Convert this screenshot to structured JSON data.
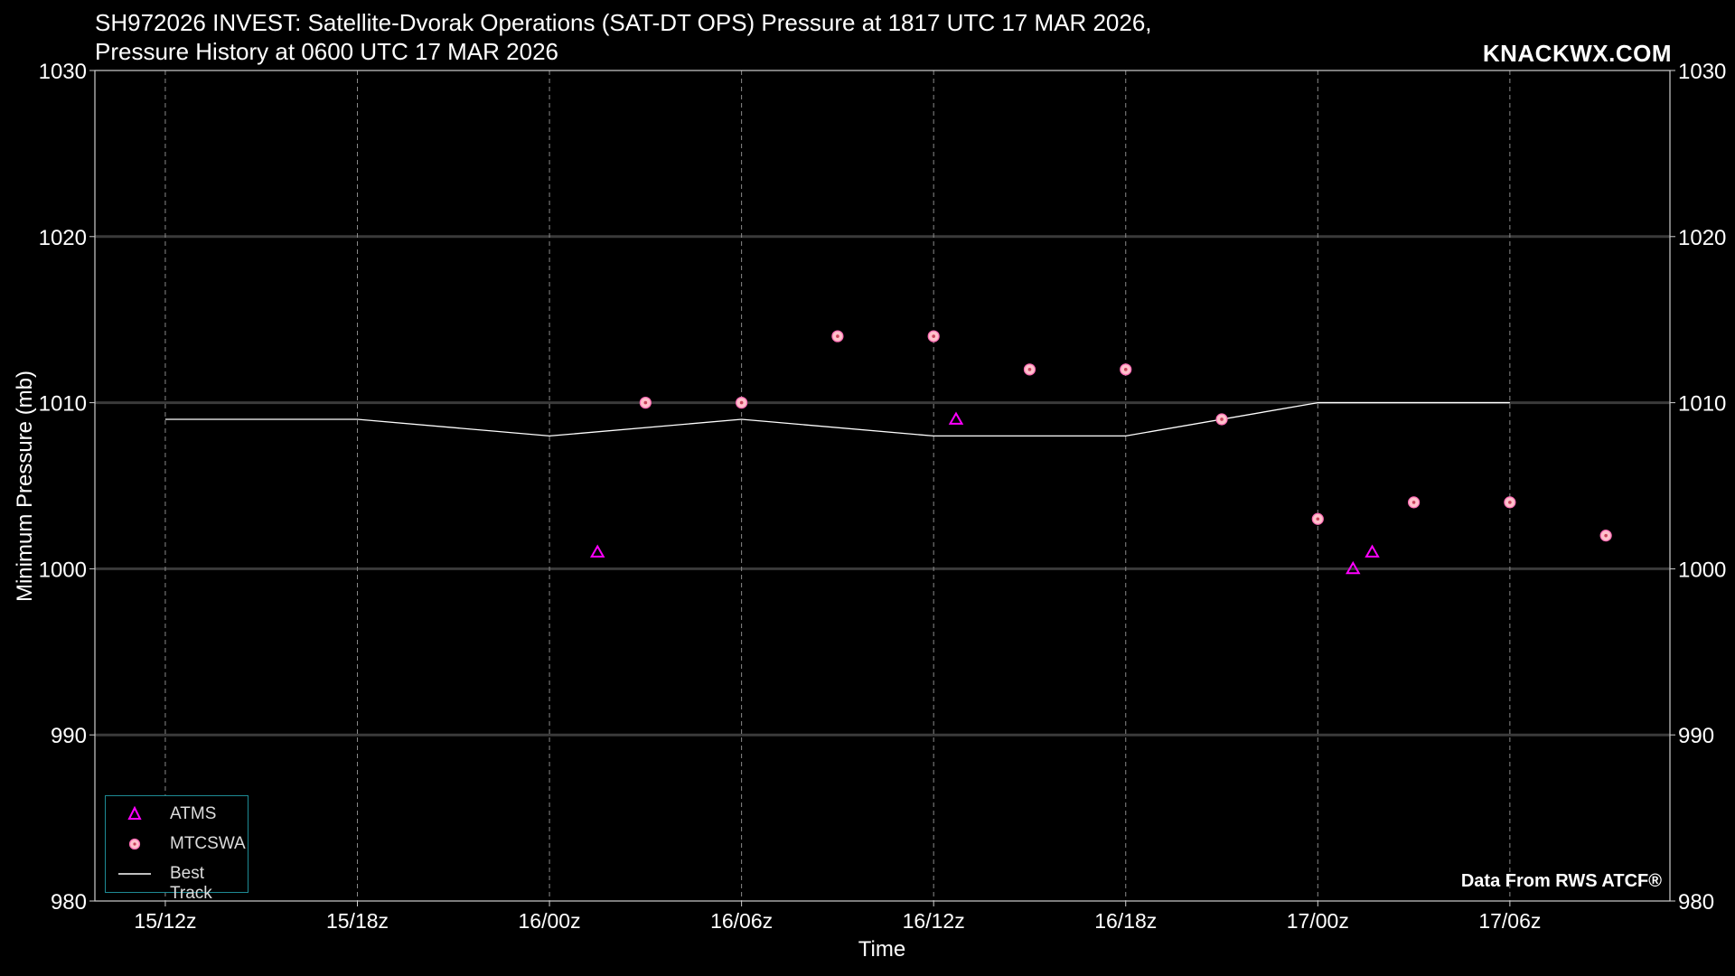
{
  "header": {
    "title_line1": "SH972026 INVEST: Satellite-Dvorak Operations (SAT-DT OPS) Pressure at 1817 UTC 17 MAR 2026,",
    "title_line2": "Pressure History at 0600 UTC 17 MAR 2026",
    "brand": "KNACKWX.COM",
    "credit": "Data From RWS ATCF®"
  },
  "colors": {
    "background": "#000000",
    "atms": "#ff00ff",
    "mtcswa_fill": "#ffc0cb",
    "mtcswa_edge": "#ff69b4",
    "best_track": "#ffffff",
    "grid": "#3a3a3a",
    "legend_border": "#1e8b95"
  },
  "legend": {
    "items": [
      {
        "label": "ATMS",
        "icon": "triangle-icon"
      },
      {
        "label": "MTCSWA",
        "icon": "circle-dot-icon"
      },
      {
        "label": "Best Track",
        "icon": "line-icon"
      }
    ],
    "placement": "lower-left"
  },
  "chart_data": {
    "type": "scatter",
    "title": "SH972026 INVEST: Satellite-Dvorak Operations (SAT-DT OPS) Pressure at 1817 UTC 17 MAR 2026, Pressure History at 0600 UTC 17 MAR 2026",
    "xlabel": "Time",
    "ylabel": "Minimum Pressure (mb)",
    "xtick_labels": [
      "15/12z",
      "15/18z",
      "16/00z",
      "16/06z",
      "16/12z",
      "16/18z",
      "17/00z",
      "17/06z"
    ],
    "xlim": [
      "15/09.8z",
      "17/11.0z"
    ],
    "ylim": [
      980,
      1030
    ],
    "yticks": [
      980,
      990,
      1000,
      1010,
      1020,
      1030
    ],
    "grid": true,
    "legend_placement": "lower-left",
    "series": [
      {
        "name": "ATMS",
        "marker": "triangle",
        "points": [
          {
            "x": "16/01.5z",
            "y": 1001
          },
          {
            "x": "16/12.7z",
            "y": 1009
          },
          {
            "x": "17/01.1z",
            "y": 1000
          },
          {
            "x": "17/01.7z",
            "y": 1001
          }
        ]
      },
      {
        "name": "MTCSWA",
        "marker": "circle",
        "points": [
          {
            "x": "16/03z",
            "y": 1010
          },
          {
            "x": "16/06z",
            "y": 1010
          },
          {
            "x": "16/09z",
            "y": 1014
          },
          {
            "x": "16/12z",
            "y": 1014
          },
          {
            "x": "16/15z",
            "y": 1012
          },
          {
            "x": "16/18z",
            "y": 1012
          },
          {
            "x": "16/21z",
            "y": 1009
          },
          {
            "x": "17/00z",
            "y": 1003
          },
          {
            "x": "17/03z",
            "y": 1004
          },
          {
            "x": "17/06z",
            "y": 1004
          },
          {
            "x": "17/09z",
            "y": 1002
          }
        ]
      },
      {
        "name": "Best Track",
        "marker": "line",
        "points": [
          {
            "x": "15/12z",
            "y": 1009
          },
          {
            "x": "15/18z",
            "y": 1009
          },
          {
            "x": "16/00z",
            "y": 1008
          },
          {
            "x": "16/06z",
            "y": 1009
          },
          {
            "x": "16/12z",
            "y": 1008
          },
          {
            "x": "16/18z",
            "y": 1008
          },
          {
            "x": "17/00z",
            "y": 1010
          },
          {
            "x": "17/06z",
            "y": 1010
          }
        ]
      }
    ]
  }
}
